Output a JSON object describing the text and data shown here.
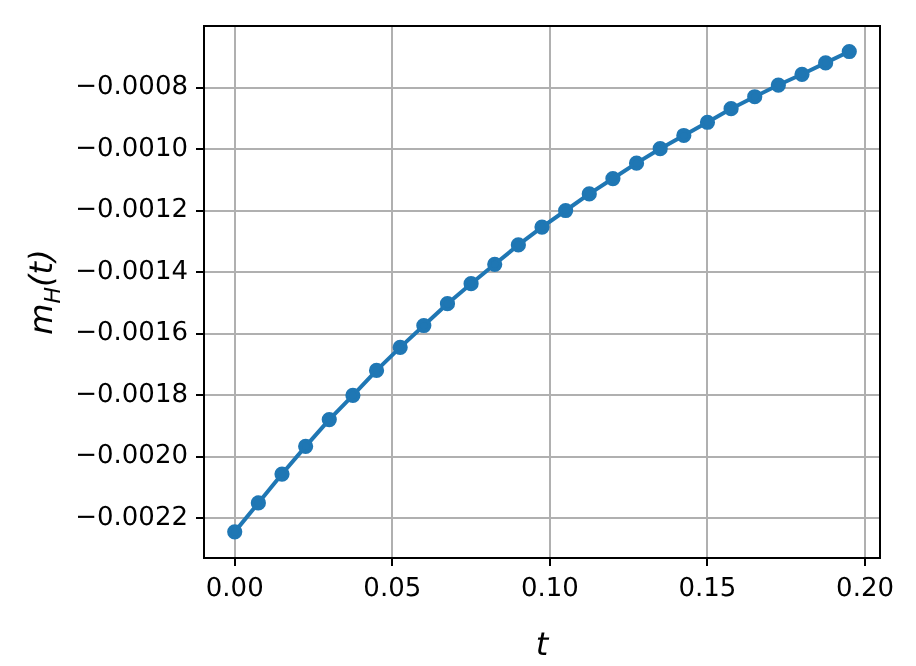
{
  "chart_data": {
    "type": "line",
    "xlabel": "t",
    "ylabel": "m$_{H}$(t)",
    "x": [
      0,
      0.0075,
      0.015,
      0.0225,
      0.03,
      0.0375,
      0.045,
      0.0525,
      0.06,
      0.0675,
      0.075,
      0.0825,
      0.09,
      0.0975,
      0.105,
      0.1125,
      0.12,
      0.1275,
      0.135,
      0.1425,
      0.15,
      0.1575,
      0.165,
      0.1725,
      0.18,
      0.1875,
      0.195
    ],
    "series": [
      {
        "color": "#1f77b4",
        "values": [
          -0.002245,
          -0.002151,
          -0.002057,
          -0.001967,
          -0.00188,
          -0.001801,
          -0.00172,
          -0.001645,
          -0.001574,
          -0.001503,
          -0.001438,
          -0.001375,
          -0.001312,
          -0.001254,
          -0.0012,
          -0.001146,
          -0.001096,
          -0.001046,
          -0.000999,
          -0.000956,
          -0.000913,
          -0.000869,
          -0.00083,
          -0.000792,
          -0.000757,
          -0.00072,
          -0.000683
        ]
      }
    ],
    "xlim": [
      -0.00975,
      0.20475
    ],
    "ylim": [
      -0.00233,
      -0.0006
    ],
    "xticks": [
      {
        "value": 0,
        "label": "0.00"
      },
      {
        "value": 0.05,
        "label": "0.05"
      },
      {
        "value": 0.1,
        "label": "0.10"
      },
      {
        "value": 0.15,
        "label": "0.15"
      },
      {
        "value": 0.2,
        "label": "0.20"
      }
    ],
    "yticks": [
      {
        "value": -0.0022,
        "label": "−0.0022"
      },
      {
        "value": -0.002,
        "label": "−0.0020"
      },
      {
        "value": -0.0018,
        "label": "−0.0018"
      },
      {
        "value": -0.0016,
        "label": "−0.0016"
      },
      {
        "value": -0.0014,
        "label": "−0.0014"
      },
      {
        "value": -0.0012,
        "label": "−0.0012"
      },
      {
        "value": -0.001,
        "label": "−0.0010"
      },
      {
        "value": -0.0008,
        "label": "−0.0008"
      }
    ],
    "grid": true,
    "legend": false,
    "marker": "circle",
    "line_style": "solid"
  }
}
